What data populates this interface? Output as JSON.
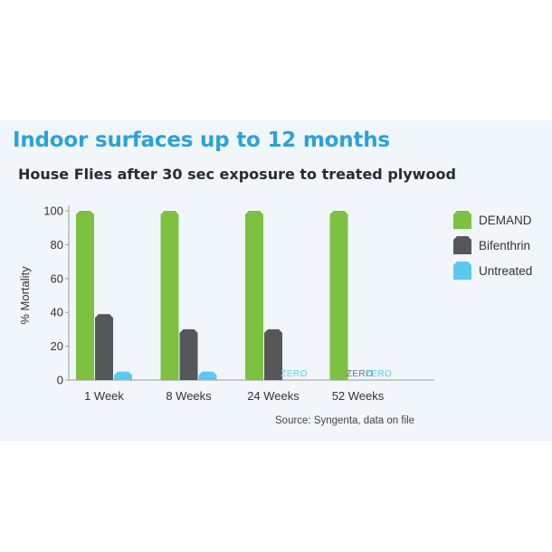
{
  "header": {
    "title": "Indoor surfaces up to 12 months"
  },
  "footer": {
    "source": "Source: Syngenta, data on file"
  },
  "chart_data": {
    "type": "bar",
    "title": "House Flies after 30 sec exposure to treated plywood",
    "xlabel": "",
    "ylabel": "% Mortality",
    "ylim": [
      0,
      100
    ],
    "yticks": [
      0,
      20,
      40,
      60,
      80,
      100
    ],
    "grid": false,
    "legend_position": "right",
    "categories": [
      "1 Week",
      "8 Weeks",
      "24 Weeks",
      "52 Weeks"
    ],
    "series": [
      {
        "name": "DEMAND",
        "color": "#7cc142",
        "values": [
          100,
          100,
          100,
          100
        ]
      },
      {
        "name": "Bifenthrin",
        "color": "#555759",
        "values": [
          39,
          30,
          30,
          0
        ]
      },
      {
        "name": "Untreated",
        "color": "#5bc8ef",
        "values": [
          5,
          5,
          0,
          0
        ]
      }
    ],
    "annotations": [
      {
        "category": "24 Weeks",
        "series": "Untreated",
        "text": "ZERO"
      },
      {
        "category": "52 Weeks",
        "series": "Bifenthrin",
        "text": "ZERO"
      },
      {
        "category": "52 Weeks",
        "series": "Untreated",
        "text": "ZERO"
      }
    ]
  }
}
